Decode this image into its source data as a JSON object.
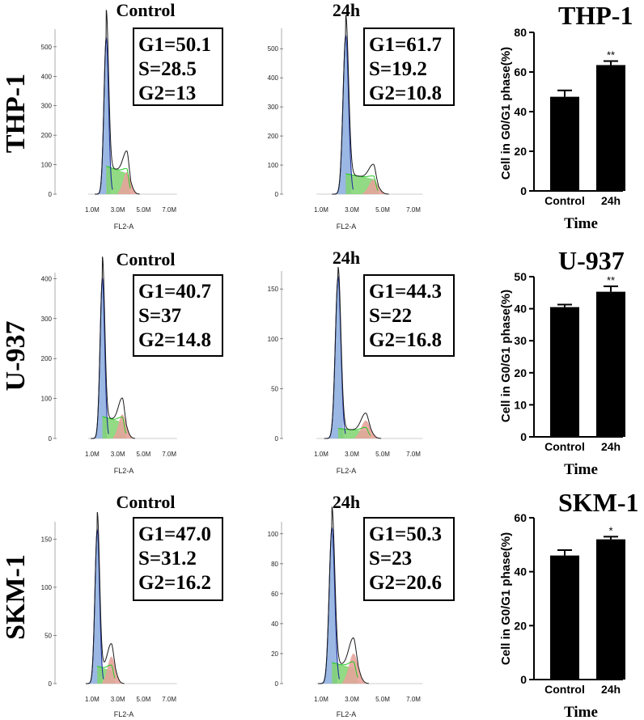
{
  "chart_data": [
    {
      "type": "histogram",
      "cell_line": "THP-1",
      "condition": "Control",
      "title": "Control",
      "xlabel": "FL2-A",
      "x_ticks": [
        "1.0M",
        "3.0M",
        "5.0M",
        "7.0M"
      ],
      "y_ticks": [
        0,
        100,
        200,
        300,
        400,
        500
      ],
      "ylim": [
        0,
        560
      ],
      "phases": {
        "G1": "50.1",
        "S": "28.5",
        "G2": "13"
      },
      "stats_lines": [
        "G1=50.1",
        "S=28.5",
        "G2=13"
      ],
      "g1_peak": {
        "x": 2.1,
        "height": 530
      },
      "g2_peak": {
        "x": 3.7,
        "height": 75
      },
      "s_level": 95
    },
    {
      "type": "histogram",
      "cell_line": "THP-1",
      "condition": "24h",
      "title": "24h",
      "xlabel": "FL2-A",
      "x_ticks": [
        "1.0M",
        "3.0M",
        "5.0M",
        "7.0M"
      ],
      "y_ticks": [
        0,
        100,
        200,
        300,
        400,
        500
      ],
      "ylim": [
        0,
        570
      ],
      "phases": {
        "G1": "61.7",
        "S": "19.2",
        "G2": "10.8"
      },
      "stats_lines": [
        "G1=61.7",
        "S=19.2",
        "G2=10.8"
      ],
      "g1_peak": {
        "x": 2.6,
        "height": 545
      },
      "g2_peak": {
        "x": 4.4,
        "height": 50
      },
      "s_level": 70
    },
    {
      "type": "bar",
      "cell_line": "THP-1",
      "title": "THP-1",
      "categories": [
        "Control",
        "24h"
      ],
      "values": [
        47.5,
        63.5
      ],
      "errors": [
        3.2,
        2.0
      ],
      "significance": [
        "",
        "**"
      ],
      "ylabel": "Cell in G0/G1 phase(%)",
      "xlabel": "Time",
      "ylim": [
        0,
        80
      ],
      "y_ticks": [
        0,
        20,
        40,
        60,
        80
      ]
    },
    {
      "type": "histogram",
      "cell_line": "U-937",
      "condition": "Control",
      "title": "Control",
      "xlabel": "FL2-A",
      "x_ticks": [
        "1.0M",
        "3.0M",
        "5.0M",
        "7.0M"
      ],
      "y_ticks": [
        0,
        100,
        200,
        300,
        400
      ],
      "ylim": [
        0,
        415
      ],
      "phases": {
        "G1": "40.7",
        "S": "37",
        "G2": "14.8"
      },
      "stats_lines": [
        "G1=40.7",
        "S=37",
        "G2=14.8"
      ],
      "g1_peak": {
        "x": 1.8,
        "height": 400
      },
      "g2_peak": {
        "x": 3.35,
        "height": 60
      },
      "s_level": 55
    },
    {
      "type": "histogram",
      "cell_line": "U-937",
      "condition": "24h",
      "title": "24h",
      "xlabel": "FL2-A",
      "x_ticks": [
        "1.0M",
        "3.0M",
        "5.0M",
        "7.0M"
      ],
      "y_ticks": [
        0,
        50,
        100,
        150
      ],
      "ylim": [
        0,
        168
      ],
      "phases": {
        "G1": "44.3",
        "S": "22",
        "G2": "16.8"
      },
      "stats_lines": [
        "G1=44.3",
        "S=22",
        "G2=16.8"
      ],
      "g1_peak": {
        "x": 2.1,
        "height": 162
      },
      "g2_peak": {
        "x": 3.9,
        "height": 18
      },
      "s_level": 10
    },
    {
      "type": "bar",
      "cell_line": "U-937",
      "title": "U-937",
      "categories": [
        "Control",
        "24h"
      ],
      "values": [
        40.5,
        45.3
      ],
      "errors": [
        0.8,
        1.7
      ],
      "significance": [
        "",
        "**"
      ],
      "ylabel": "Cell in G0/G1 phase(%)",
      "xlabel": "Time",
      "ylim": [
        0,
        50
      ],
      "y_ticks": [
        0,
        10,
        20,
        30,
        40,
        50
      ]
    },
    {
      "type": "histogram",
      "cell_line": "SKM-1",
      "condition": "Control",
      "title": "Control",
      "xlabel": "FL2-A",
      "x_ticks": [
        "1.0M",
        "3.0M",
        "5.0M",
        "7.0M"
      ],
      "y_ticks": [
        0,
        50,
        100,
        150
      ],
      "ylim": [
        0,
        168
      ],
      "phases": {
        "G1": "47.0",
        "S": "31.2",
        "G2": "16.2"
      },
      "stats_lines": [
        "G1=47.0",
        "S=31.2",
        "G2=16.2"
      ],
      "g1_peak": {
        "x": 1.4,
        "height": 160
      },
      "g2_peak": {
        "x": 2.5,
        "height": 28
      },
      "s_level": 18
    },
    {
      "type": "histogram",
      "cell_line": "SKM-1",
      "condition": "24h",
      "title": "24h",
      "xlabel": "FL2-A",
      "x_ticks": [
        "1.0M",
        "3.0M",
        "5.0M",
        "7.0M"
      ],
      "y_ticks": [
        0,
        20,
        40,
        60,
        80,
        100
      ],
      "ylim": [
        0,
        108
      ],
      "phases": {
        "G1": "50.3",
        "S": "23",
        "G2": "20.6"
      },
      "stats_lines": [
        "G1=50.3",
        "S=23",
        "G2=20.6"
      ],
      "g1_peak": {
        "x": 1.7,
        "height": 104
      },
      "g2_peak": {
        "x": 3.1,
        "height": 20
      },
      "s_level": 14
    },
    {
      "type": "bar",
      "cell_line": "SKM-1",
      "title": "SKM-1",
      "categories": [
        "Control",
        "24h"
      ],
      "values": [
        46.0,
        52.0
      ],
      "errors": [
        2.0,
        1.0
      ],
      "significance": [
        "",
        "*"
      ],
      "ylabel": "Cell in G0/G1 phase(%)",
      "xlabel": "Time",
      "ylim": [
        0,
        60
      ],
      "y_ticks": [
        0,
        20,
        40,
        60
      ]
    }
  ],
  "row_labels": [
    "THP-1",
    "U-937",
    "SKM-1"
  ],
  "colors": {
    "g1_fill": "#8fb0e0",
    "s_fill": "#7fd36f",
    "s_line": "#1fc81f",
    "g2_fill": "#e5a39a",
    "outline": "#1a1a1a",
    "g1_line": "#1f2f9a",
    "bar": "#000000"
  }
}
